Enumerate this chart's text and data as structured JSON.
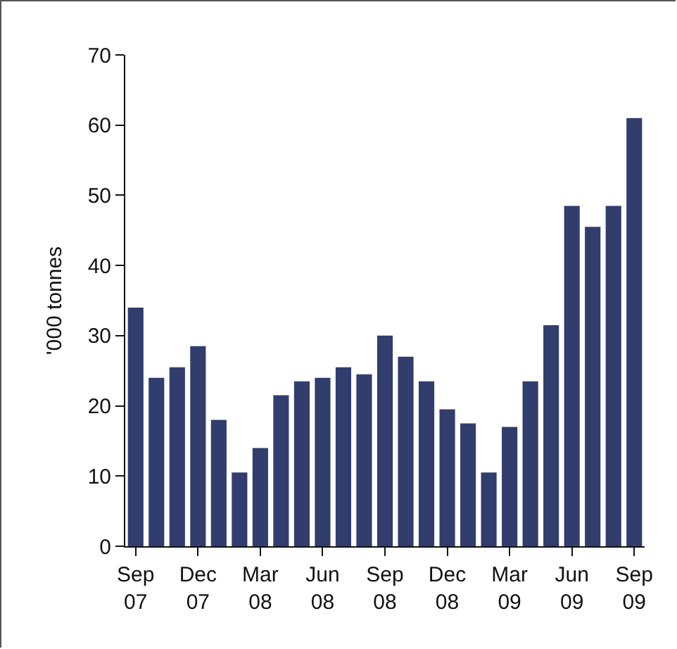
{
  "chart_data": {
    "type": "bar",
    "ylabel": "'000 tonnes",
    "categories": [
      "Sep 07",
      null,
      null,
      "Dec 07",
      null,
      null,
      "Mar 08",
      null,
      null,
      "Jun 08",
      null,
      null,
      "Sep 08",
      null,
      null,
      "Dec 08",
      null,
      null,
      "Mar 09",
      null,
      null,
      "Jun 09",
      null,
      null,
      "Sep 09"
    ],
    "values": [
      34,
      24,
      25.5,
      28.5,
      18,
      10.5,
      14,
      21.5,
      23.5,
      24,
      25.5,
      24.5,
      30,
      27,
      23.5,
      19.5,
      17.5,
      10.5,
      17,
      23.5,
      31.5,
      48.5,
      45.5,
      48.5,
      61
    ],
    "color": "#313d6c",
    "ylim": [
      0,
      70
    ],
    "yticks": [
      0,
      10,
      20,
      30,
      40,
      50,
      60,
      70
    ],
    "grid": false
  }
}
